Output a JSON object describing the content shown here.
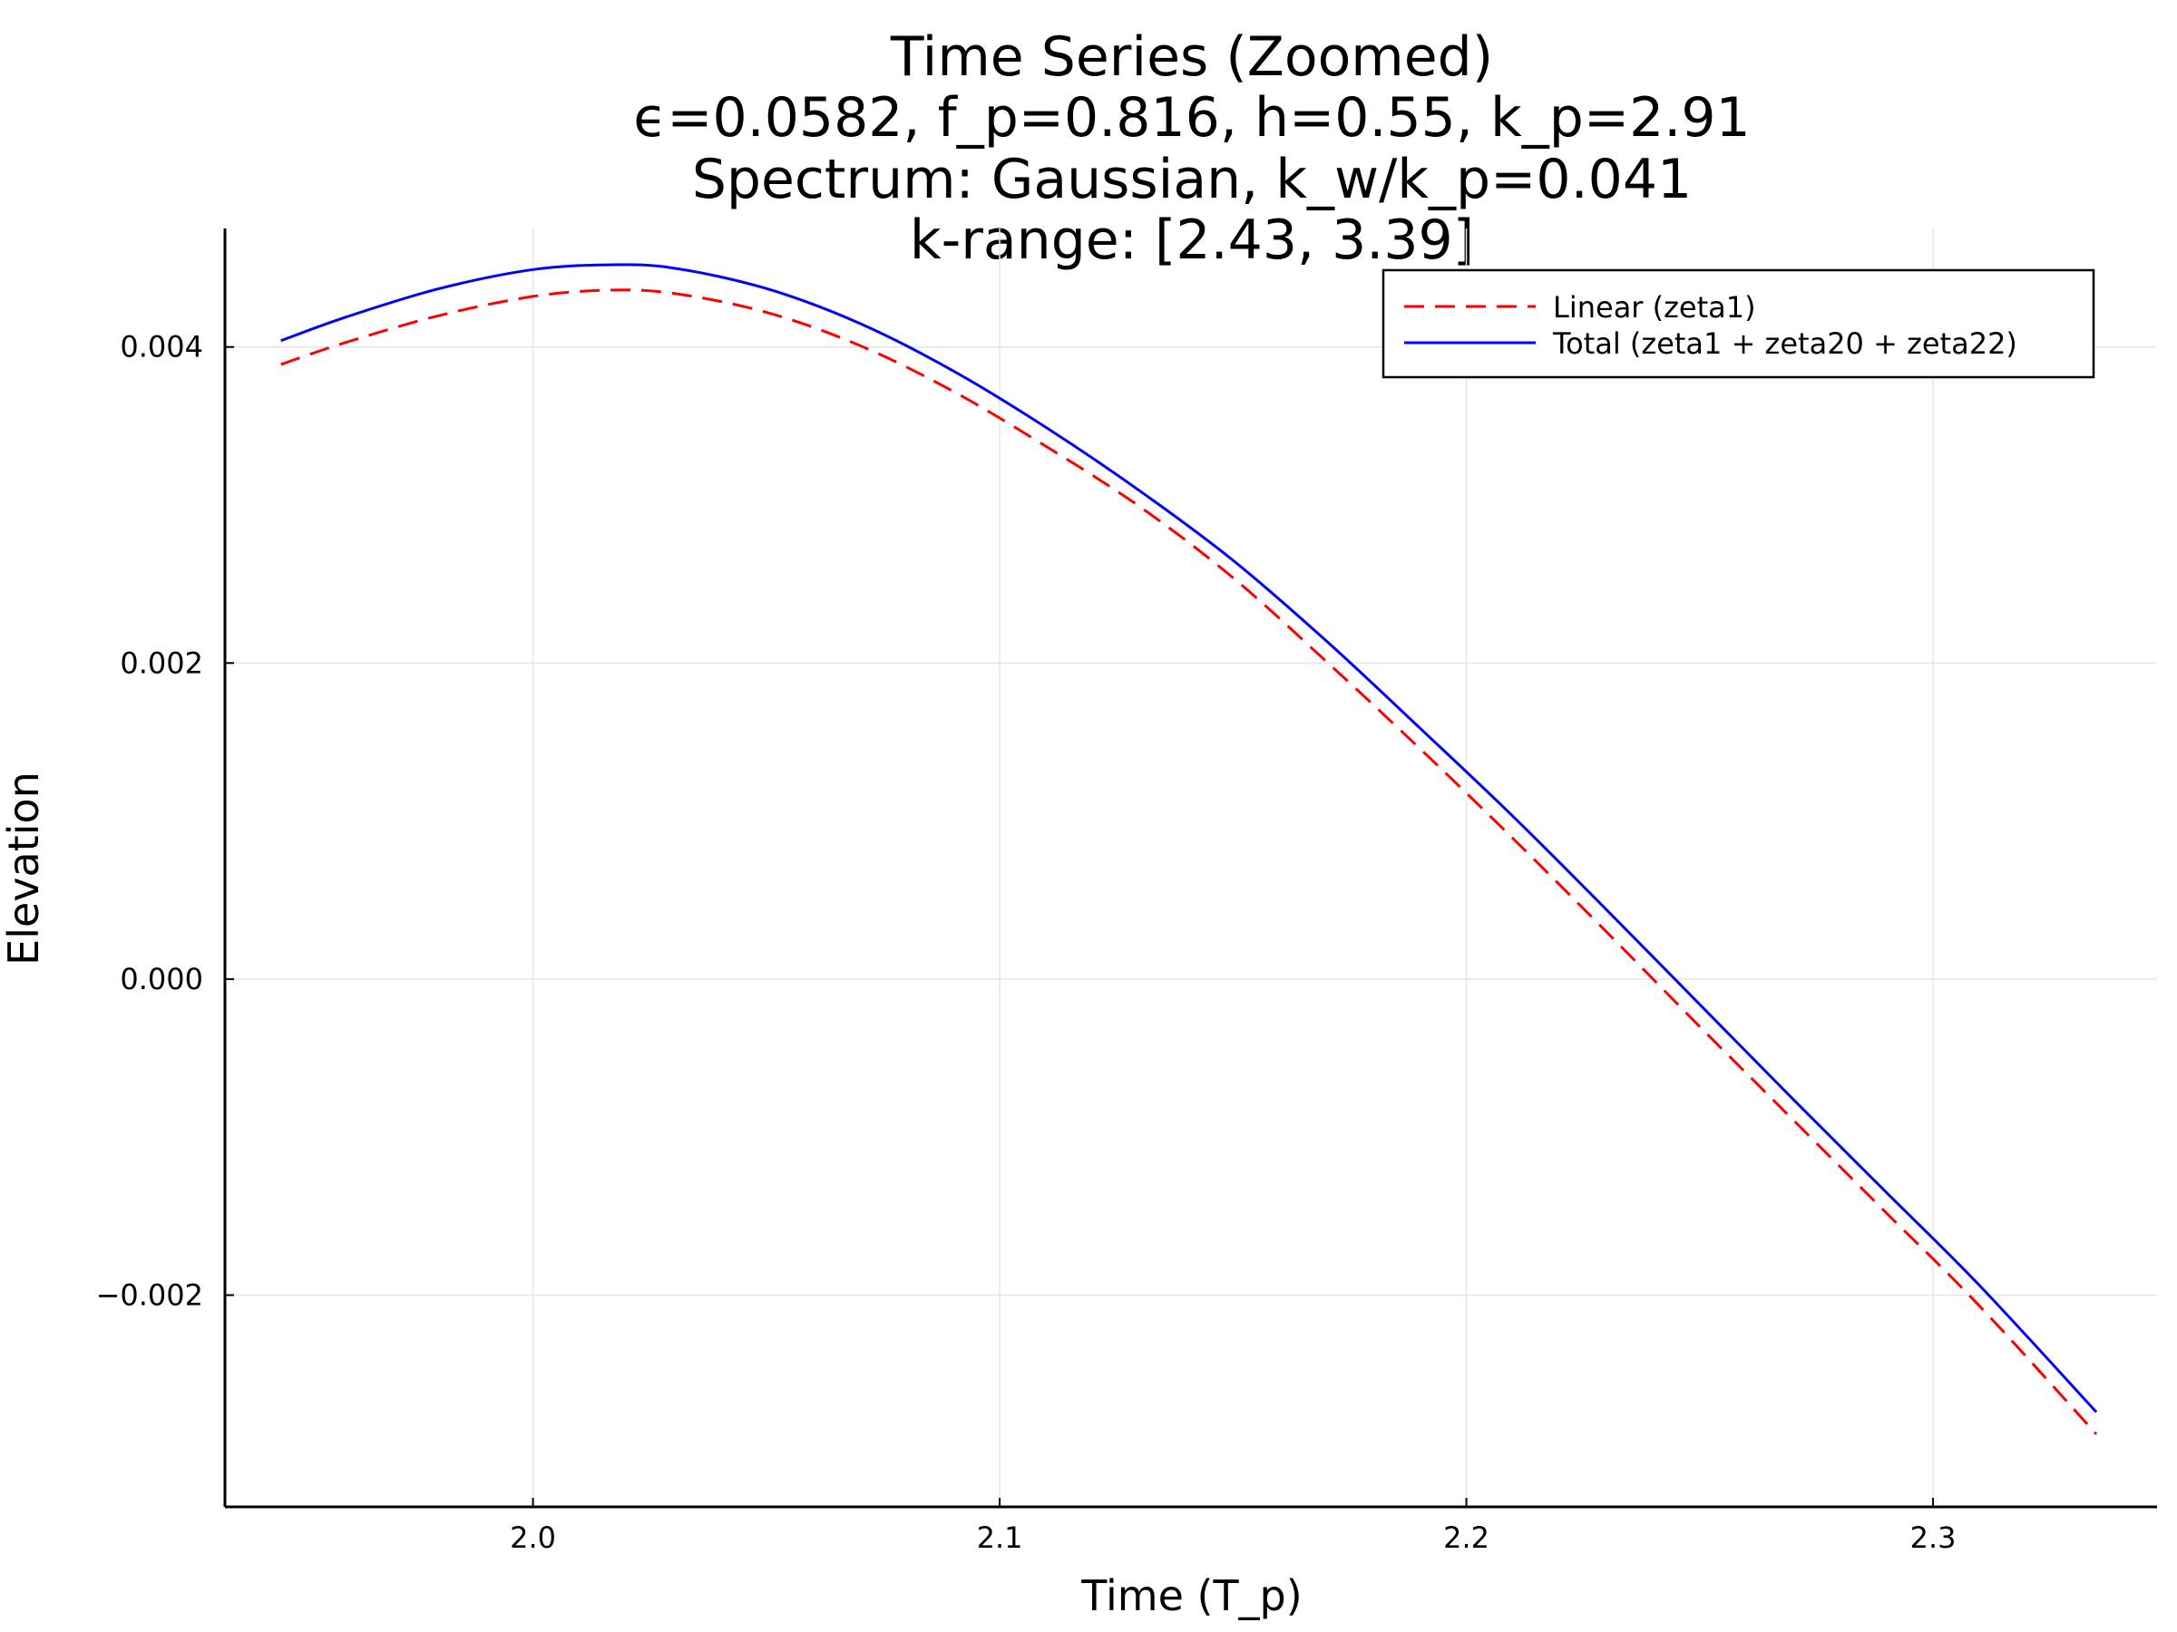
{
  "chart_data": {
    "type": "line",
    "title_lines": [
      "Time Series (Zoomed)",
      "ϵ=0.0582, f_p=0.816, h=0.55, k_p=2.91",
      "Spectrum: Gaussian, k_w/k_p=0.041",
      "k-range: [2.43, 3.39]"
    ],
    "xlabel": "Time (T_p)",
    "ylabel": "Elevation",
    "xlim": [
      1.934,
      2.348
    ],
    "ylim": [
      -0.00334,
      0.00475
    ],
    "x_ticks": [
      2.0,
      2.1,
      2.2,
      2.3
    ],
    "x_tick_labels": [
      "2.0",
      "2.1",
      "2.2",
      "2.3"
    ],
    "y_ticks": [
      -0.002,
      0.0,
      0.002,
      0.004
    ],
    "y_tick_labels": [
      "−0.002",
      "0.000",
      "0.002",
      "0.004"
    ],
    "grid": true,
    "legend_position": "top-right",
    "series": [
      {
        "name": "Linear (zeta1)",
        "color": "#ff0000",
        "style": "dashed",
        "x": [
          1.946,
          1.96,
          1.98,
          2.0,
          2.016,
          2.03,
          2.05,
          2.07,
          2.09,
          2.11,
          2.13,
          2.15,
          2.17,
          2.19,
          2.21,
          2.23,
          2.25,
          2.27,
          2.29,
          2.31,
          2.335
        ],
        "y": [
          0.00389,
          0.00403,
          0.0042,
          0.00432,
          0.00436,
          0.00434,
          0.00422,
          0.00401,
          0.00372,
          0.00337,
          0.00299,
          0.00254,
          0.00201,
          0.00146,
          0.00089,
          0.0003,
          -0.0003,
          -0.00089,
          -0.00148,
          -0.00207,
          -0.00288
        ]
      },
      {
        "name": "Total (zeta1 + zeta20 + zeta22)",
        "color": "#0000ff",
        "style": "solid",
        "x": [
          1.946,
          1.96,
          1.98,
          2.0,
          2.016,
          2.03,
          2.05,
          2.07,
          2.09,
          2.11,
          2.13,
          2.15,
          2.17,
          2.19,
          2.21,
          2.23,
          2.25,
          2.27,
          2.29,
          2.31,
          2.335
        ],
        "y": [
          0.00404,
          0.00419,
          0.00437,
          0.00449,
          0.00452,
          0.0045,
          0.00437,
          0.00415,
          0.00385,
          0.00349,
          0.00309,
          0.00265,
          0.00214,
          0.00159,
          0.00103,
          0.00044,
          -0.00016,
          -0.00076,
          -0.00135,
          -0.00194,
          -0.00274
        ]
      }
    ]
  }
}
